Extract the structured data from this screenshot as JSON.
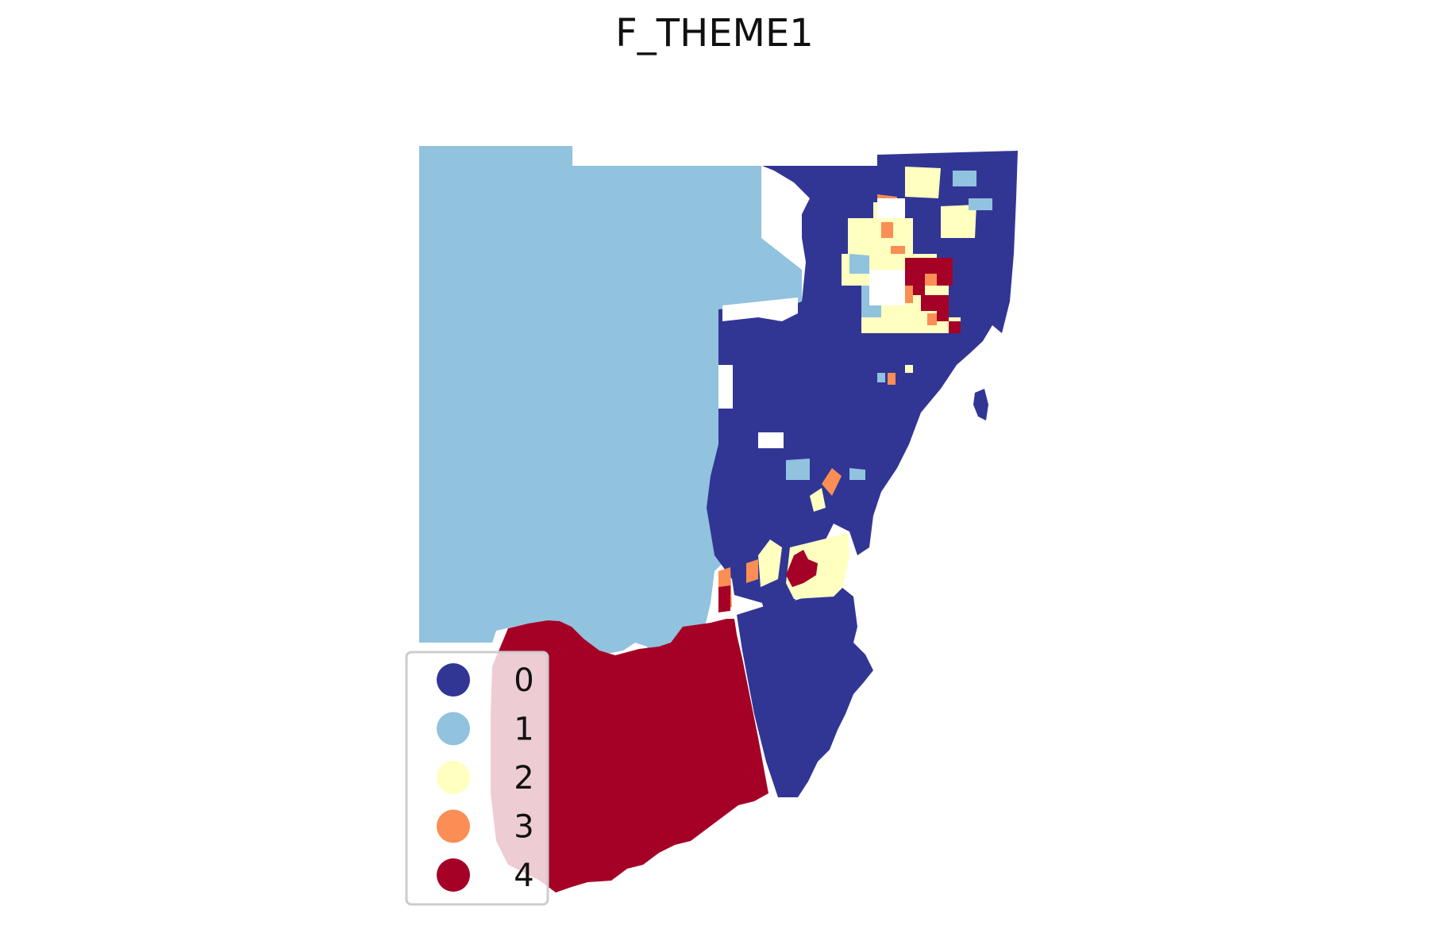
{
  "map": {
    "title": "F_THEME1",
    "colors": {
      "class_0": "#313695",
      "class_1": "#91c2de",
      "class_2": "#ffffc0",
      "class_3": "#fa8e55",
      "class_4": "#a50026"
    },
    "legend": {
      "placement": "lower-left",
      "items": [
        {
          "label": "0",
          "color": "#313695"
        },
        {
          "label": "1",
          "color": "#91c2de"
        },
        {
          "label": "2",
          "color": "#ffffc0"
        },
        {
          "label": "3",
          "color": "#fa8e55"
        },
        {
          "label": "4",
          "color": "#a50026"
        }
      ]
    }
  }
}
